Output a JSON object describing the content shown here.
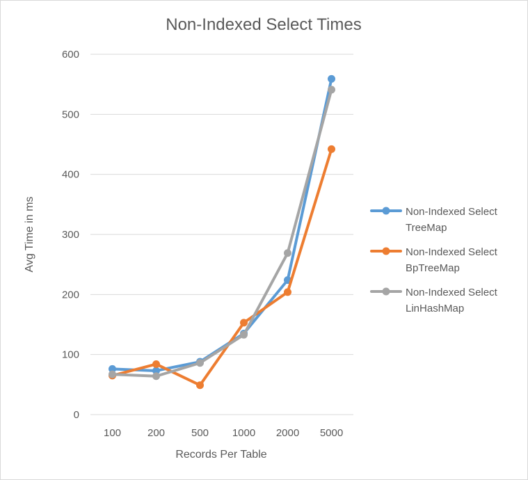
{
  "chart_data": {
    "type": "line",
    "title": "Non-Indexed Select Times",
    "xlabel": "Records Per Table",
    "ylabel": "Avg Time in ms",
    "categories": [
      "100",
      "200",
      "500",
      "1000",
      "2000",
      "5000"
    ],
    "ylim": [
      0,
      600
    ],
    "yticks": [
      0,
      100,
      200,
      300,
      400,
      500,
      600
    ],
    "grid": true,
    "legend_position": "right",
    "series": [
      {
        "name": "Non-Indexed Select TreeMap",
        "legend_lines": [
          "Non-Indexed Select",
          "TreeMap"
        ],
        "color": "#5b9bd5",
        "values": [
          76,
          73,
          88,
          135,
          224,
          559
        ]
      },
      {
        "name": "Non-Indexed Select BpTreeMap",
        "legend_lines": [
          "Non-Indexed Select",
          "BpTreeMap"
        ],
        "color": "#ed7d31",
        "values": [
          65,
          84,
          49,
          153,
          204,
          442
        ]
      },
      {
        "name": "Non-Indexed Select LinHashMap",
        "legend_lines": [
          "Non-Indexed Select",
          "LinHashMap"
        ],
        "color": "#a5a5a5",
        "values": [
          67,
          64,
          86,
          133,
          269,
          541
        ]
      }
    ]
  }
}
